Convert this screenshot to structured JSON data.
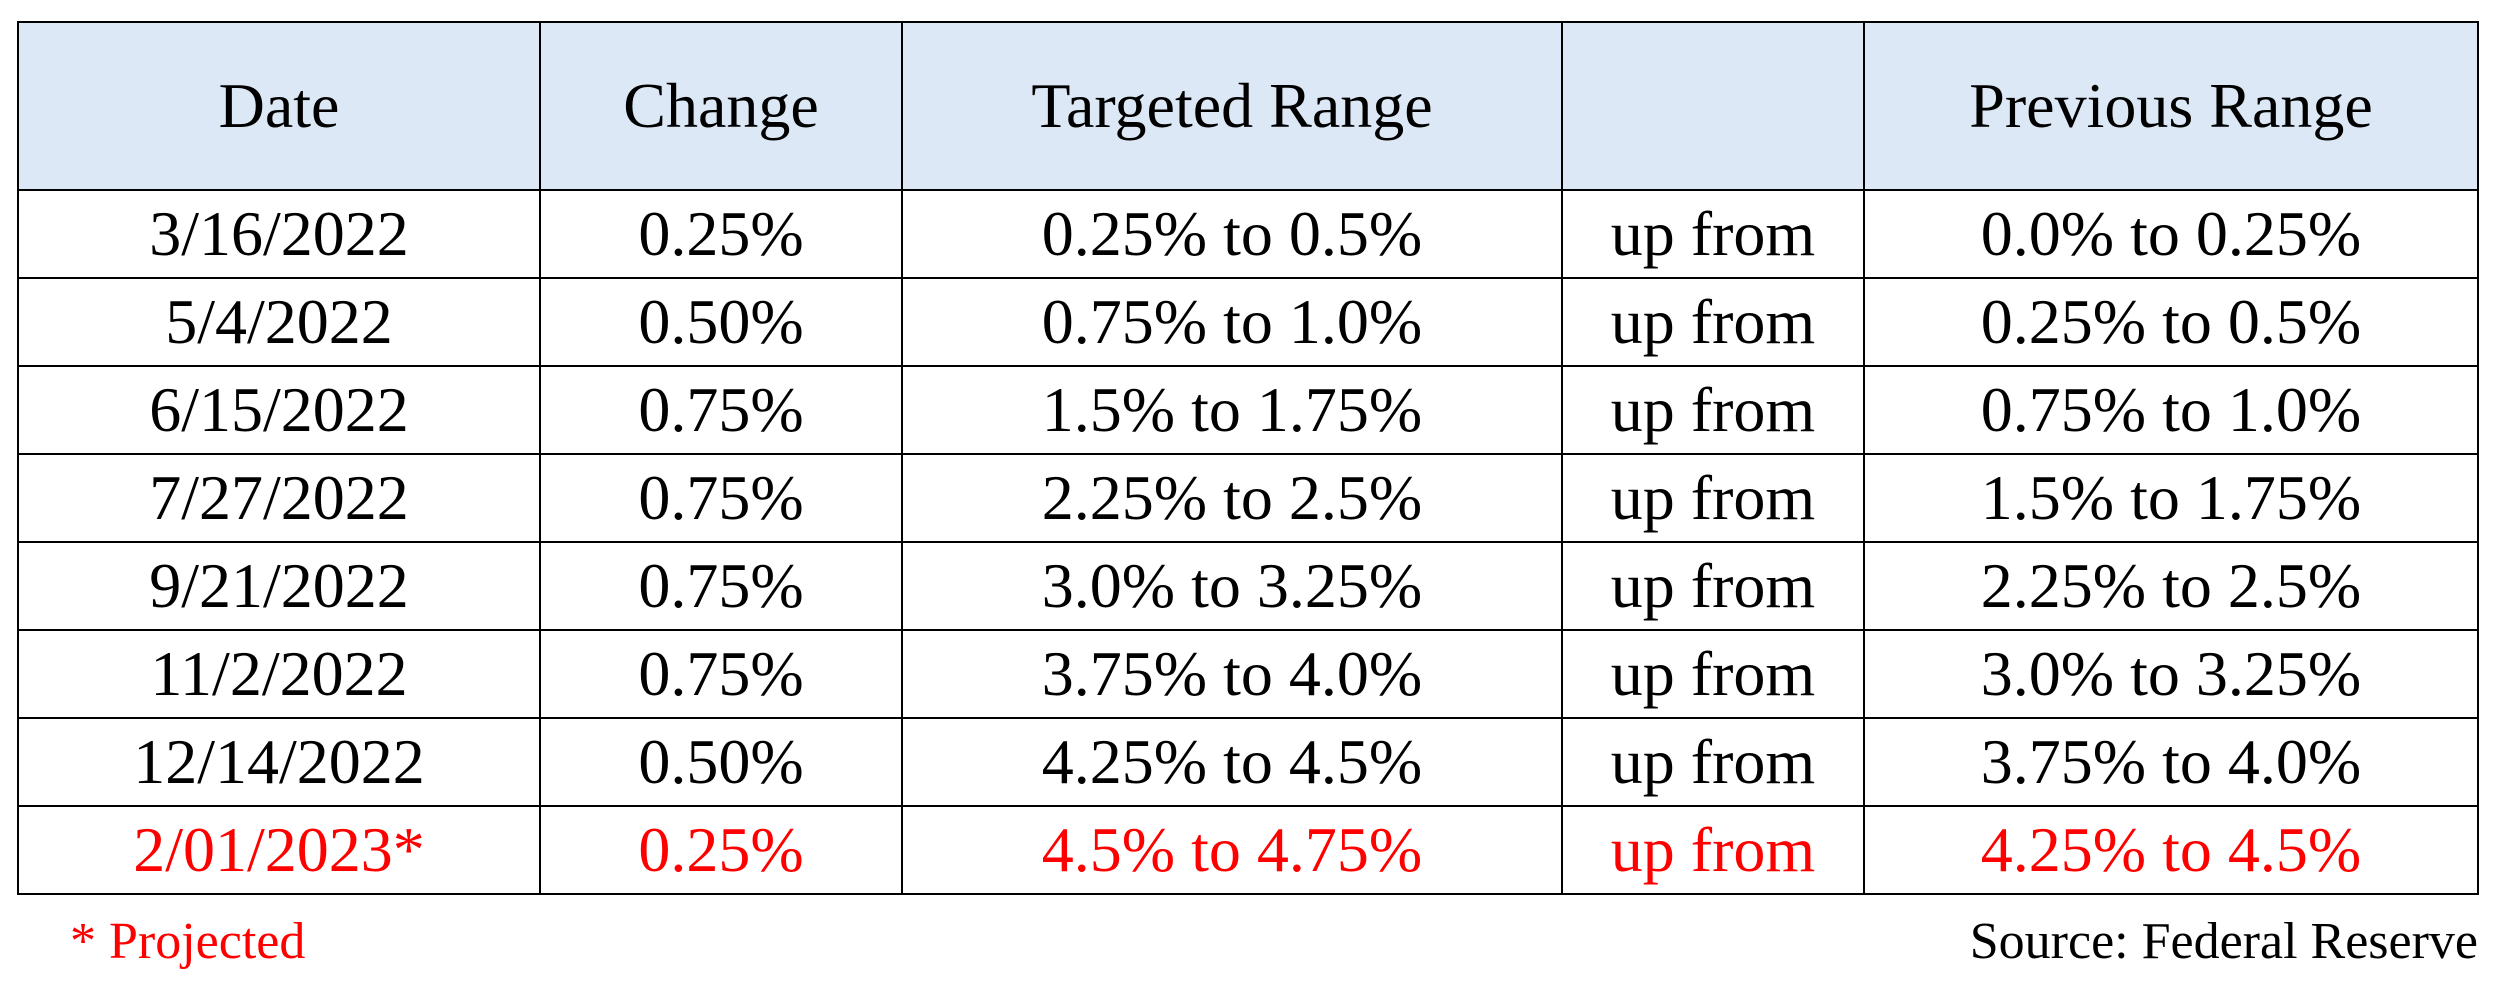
{
  "table": {
    "headers": [
      "Date",
      "Change",
      "Targeted Range",
      "",
      "Previous Range"
    ],
    "rows": [
      [
        "3/16/2022",
        "0.25%",
        "0.25% to 0.5%",
        "up from",
        "0.0% to 0.25%"
      ],
      [
        "5/4/2022",
        "0.50%",
        "0.75% to 1.0%",
        "up from",
        "0.25% to 0.5%"
      ],
      [
        "6/15/2022",
        "0.75%",
        "1.5% to 1.75%",
        "up from",
        "0.75% to 1.0%"
      ],
      [
        "7/27/2022",
        "0.75%",
        "2.25% to 2.5%",
        "up from",
        "1.5% to 1.75%"
      ],
      [
        "9/21/2022",
        "0.75%",
        "3.0% to 3.25%",
        "up from",
        "2.25% to 2.5%"
      ],
      [
        "11/2/2022",
        "0.75%",
        "3.75% to 4.0%",
        "up from",
        "3.0% to 3.25%"
      ],
      [
        "12/14/2022",
        "0.50%",
        "4.25% to 4.5%",
        "up from",
        "3.75% to 4.0%"
      ],
      [
        "2/01/2023*",
        "0.25%",
        "4.5% to 4.75%",
        "up from",
        "4.25% to 4.5%"
      ]
    ],
    "projected_row_index": 7
  },
  "footer": {
    "note": "* Projected",
    "source": "Source: Federal Reserve"
  },
  "colors": {
    "header_background": "#dce8f5",
    "projected_text": "#ff0000",
    "border": "#000000"
  }
}
